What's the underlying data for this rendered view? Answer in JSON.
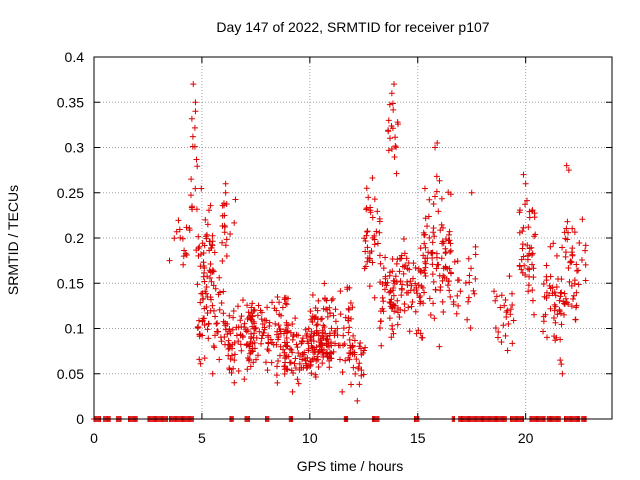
{
  "chart_data": {
    "type": "scatter",
    "title": "Day 147 of 2022, SRMTID for receiver p107",
    "xlabel": "GPS time / hours",
    "ylabel": "SRMTID / TECUs",
    "xlim": [
      0,
      24
    ],
    "ylim": [
      0,
      0.4
    ],
    "xticks": [
      0,
      5,
      10,
      15,
      20
    ],
    "xtick_labels": [
      "0",
      "5",
      "10",
      "15",
      "20"
    ],
    "yticks": [
      0,
      0.05,
      0.1,
      0.15,
      0.2,
      0.25,
      0.3,
      0.35,
      0.4
    ],
    "ytick_labels": [
      "0",
      "0.05",
      "0.1",
      "0.15",
      "0.2",
      "0.25",
      "0.3",
      "0.35",
      "0.4"
    ],
    "grid": true,
    "marker": "+",
    "color": "#dd0000",
    "series": [
      {
        "name": "SRMTID",
        "clusters": [
          {
            "x": [
              3.7,
              4.5
            ],
            "y_center": 0.2,
            "y_spread": 0.03,
            "count": 14
          },
          {
            "x": [
              4.4,
              4.8
            ],
            "y_center": 0.29,
            "y_spread": 0.07,
            "count": 12
          },
          {
            "x": [
              4.7,
              5.6
            ],
            "y_center": 0.18,
            "y_spread": 0.05,
            "count": 50
          },
          {
            "x": [
              4.8,
              6.0
            ],
            "y_center": 0.11,
            "y_spread": 0.04,
            "count": 55
          },
          {
            "x": [
              5.8,
              6.6
            ],
            "y_center": 0.21,
            "y_spread": 0.04,
            "count": 18
          },
          {
            "x": [
              6.0,
              7.5
            ],
            "y_center": 0.09,
            "y_spread": 0.035,
            "count": 80
          },
          {
            "x": [
              7.0,
              9.0
            ],
            "y_center": 0.09,
            "y_spread": 0.04,
            "count": 100
          },
          {
            "x": [
              8.8,
              11.0
            ],
            "y_center": 0.075,
            "y_spread": 0.03,
            "count": 110
          },
          {
            "x": [
              10.0,
              12.0
            ],
            "y_center": 0.1,
            "y_spread": 0.04,
            "count": 110
          },
          {
            "x": [
              11.8,
              12.6
            ],
            "y_center": 0.07,
            "y_spread": 0.03,
            "count": 30
          },
          {
            "x": [
              12.5,
              13.3
            ],
            "y_center": 0.2,
            "y_spread": 0.06,
            "count": 40
          },
          {
            "x": [
              13.2,
              14.0
            ],
            "y_center": 0.13,
            "y_spread": 0.05,
            "count": 50
          },
          {
            "x": [
              13.6,
              14.1
            ],
            "y_center": 0.3,
            "y_spread": 0.06,
            "count": 18
          },
          {
            "x": [
              14.0,
              15.4
            ],
            "y_center": 0.15,
            "y_spread": 0.05,
            "count": 80
          },
          {
            "x": [
              15.3,
              16.6
            ],
            "y_center": 0.19,
            "y_spread": 0.06,
            "count": 60
          },
          {
            "x": [
              15.8,
              17.0
            ],
            "y_center": 0.15,
            "y_spread": 0.04,
            "count": 30
          },
          {
            "x": [
              17.2,
              17.7
            ],
            "y_center": 0.15,
            "y_spread": 0.06,
            "count": 14
          },
          {
            "x": [
              18.5,
              19.5
            ],
            "y_center": 0.12,
            "y_spread": 0.05,
            "count": 25
          },
          {
            "x": [
              19.7,
              20.5
            ],
            "y_center": 0.19,
            "y_spread": 0.06,
            "count": 45
          },
          {
            "x": [
              20.8,
              21.8
            ],
            "y_center": 0.13,
            "y_spread": 0.05,
            "count": 50
          },
          {
            "x": [
              21.8,
              22.8
            ],
            "y_center": 0.17,
            "y_spread": 0.06,
            "count": 45
          }
        ],
        "points": [
          [
            4.6,
            0.37
          ],
          [
            4.7,
            0.34
          ],
          [
            4.7,
            0.35
          ],
          [
            13.9,
            0.37
          ],
          [
            13.8,
            0.36
          ],
          [
            15.9,
            0.305
          ],
          [
            15.8,
            0.3
          ],
          [
            21.9,
            0.28
          ],
          [
            22.0,
            0.275
          ],
          [
            19.9,
            0.27
          ],
          [
            20.0,
            0.26
          ],
          [
            6.1,
            0.26
          ],
          [
            6.1,
            0.25
          ],
          [
            4.5,
            0.265
          ],
          [
            17.5,
            0.25
          ],
          [
            5.5,
            0.05
          ],
          [
            6.5,
            0.04
          ],
          [
            9.2,
            0.03
          ],
          [
            11.5,
            0.03
          ],
          [
            12.2,
            0.02
          ],
          [
            21.6,
            0.065
          ],
          [
            21.7,
            0.05
          ],
          [
            22.3,
            0.11
          ],
          [
            16.0,
            0.08
          ],
          [
            3.5,
            0.175
          ]
        ],
        "zero_segments": [
          [
            0.0,
            0.3
          ],
          [
            0.45,
            0.75
          ],
          [
            1.05,
            1.25
          ],
          [
            1.6,
            2.0
          ],
          [
            2.5,
            3.4
          ],
          [
            3.5,
            4.6
          ],
          [
            6.3,
            6.45
          ],
          [
            7.0,
            7.2
          ],
          [
            7.95,
            8.1
          ],
          [
            9.05,
            9.2
          ],
          [
            11.6,
            11.75
          ],
          [
            12.9,
            13.2
          ],
          [
            14.85,
            15.05
          ],
          [
            16.6,
            16.7
          ],
          [
            16.9,
            17.0
          ],
          [
            17.0,
            19.1
          ],
          [
            19.3,
            19.9
          ],
          [
            20.2,
            20.9
          ],
          [
            21.0,
            21.6
          ],
          [
            21.8,
            22.5
          ],
          [
            22.6,
            22.8
          ]
        ]
      }
    ]
  }
}
